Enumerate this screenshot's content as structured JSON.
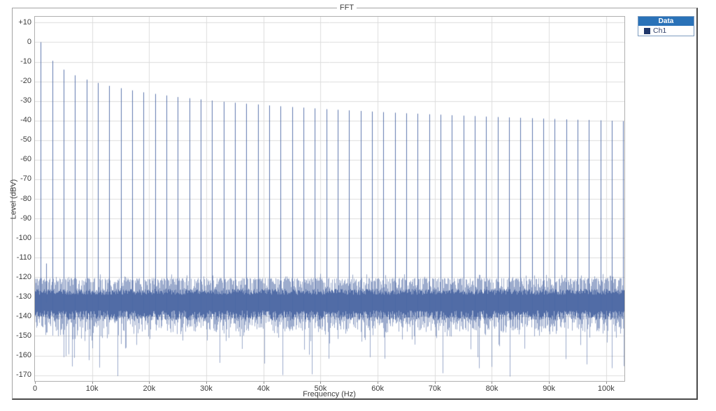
{
  "figure": {
    "title": "FFT"
  },
  "legend": {
    "header": "Data",
    "series_label": "Ch1",
    "header_bg": "#2a72b8",
    "swatch_color": "#20376b"
  },
  "colors": {
    "trace": "#4d68a4",
    "grid": "#dcdcdc",
    "plot_border": "#b0b0b0",
    "frame_border": "#a3a3a3",
    "text": "#3c3c3c"
  },
  "chart_data": {
    "type": "line",
    "title": "FFT",
    "xlabel": "Frequency (Hz)",
    "ylabel": "Level (dBV)",
    "xlim_khz": [
      0,
      103.2
    ],
    "ylim_db": [
      -173,
      13
    ],
    "grid": true,
    "legend_position": "top-right-outside",
    "x_ticks": [
      {
        "khz": 0,
        "label": "0"
      },
      {
        "khz": 10,
        "label": "10k"
      },
      {
        "khz": 20,
        "label": "20k"
      },
      {
        "khz": 30,
        "label": "30k"
      },
      {
        "khz": 40,
        "label": "40k"
      },
      {
        "khz": 50,
        "label": "50k"
      },
      {
        "khz": 60,
        "label": "60k"
      },
      {
        "khz": 70,
        "label": "70k"
      },
      {
        "khz": 80,
        "label": "80k"
      },
      {
        "khz": 90,
        "label": "90k"
      },
      {
        "khz": 100,
        "label": "100k"
      }
    ],
    "y_ticks": [
      {
        "db": 10,
        "label": "+10"
      },
      {
        "db": 0,
        "label": "0"
      },
      {
        "db": -10,
        "label": "-10"
      },
      {
        "db": -20,
        "label": "-20"
      },
      {
        "db": -30,
        "label": "-30"
      },
      {
        "db": -40,
        "label": "-40"
      },
      {
        "db": -50,
        "label": "-50"
      },
      {
        "db": -60,
        "label": "-60"
      },
      {
        "db": -70,
        "label": "-70"
      },
      {
        "db": -80,
        "label": "-80"
      },
      {
        "db": -90,
        "label": "-90"
      },
      {
        "db": -100,
        "label": "-100"
      },
      {
        "db": -110,
        "label": "-110"
      },
      {
        "db": -120,
        "label": "-120"
      },
      {
        "db": -130,
        "label": "-130"
      },
      {
        "db": -140,
        "label": "-140"
      },
      {
        "db": -150,
        "label": "-150"
      },
      {
        "db": -160,
        "label": "-160"
      },
      {
        "db": -170,
        "label": "-170"
      }
    ],
    "series": [
      {
        "name": "Ch1",
        "description": "Spectrum of a 1 kHz square wave: odd harmonics spaced 2 kHz apart decaying as 20*log10(1/n), above a random noise floor",
        "harmonics_khz_db": [
          [
            1,
            0
          ],
          [
            3,
            -9.5
          ],
          [
            5,
            -14
          ],
          [
            7,
            -16.9
          ],
          [
            9,
            -19.1
          ],
          [
            11,
            -20.8
          ],
          [
            13,
            -22.3
          ],
          [
            15,
            -23.5
          ],
          [
            17,
            -24.6
          ],
          [
            19,
            -25.6
          ],
          [
            21,
            -26.4
          ],
          [
            23,
            -27.2
          ],
          [
            25,
            -28
          ],
          [
            27,
            -28.6
          ],
          [
            29,
            -29.2
          ],
          [
            31,
            -29.8
          ],
          [
            33,
            -30.4
          ],
          [
            35,
            -30.9
          ],
          [
            37,
            -31.4
          ],
          [
            39,
            -31.8
          ],
          [
            41,
            -32.3
          ],
          [
            43,
            -32.7
          ],
          [
            45,
            -33.1
          ],
          [
            47,
            -33.4
          ],
          [
            49,
            -33.8
          ],
          [
            51,
            -34.2
          ],
          [
            53,
            -34.5
          ],
          [
            55,
            -34.8
          ],
          [
            57,
            -35.1
          ],
          [
            59,
            -35.4
          ],
          [
            61,
            -35.7
          ],
          [
            63,
            -36
          ],
          [
            65,
            -36.3
          ],
          [
            67,
            -36.5
          ],
          [
            69,
            -36.8
          ],
          [
            71,
            -37
          ],
          [
            73,
            -37.3
          ],
          [
            75,
            -37.5
          ],
          [
            77,
            -37.7
          ],
          [
            79,
            -38
          ],
          [
            81,
            -38.2
          ],
          [
            83,
            -38.4
          ],
          [
            85,
            -38.6
          ],
          [
            87,
            -38.8
          ],
          [
            89,
            -39
          ],
          [
            91,
            -39.2
          ],
          [
            93,
            -39.4
          ],
          [
            95,
            -39.6
          ],
          [
            97,
            -39.7
          ],
          [
            99,
            -39.9
          ],
          [
            101,
            -40.1
          ],
          [
            103,
            -40.3
          ]
        ],
        "even_harmonic_spur": {
          "khz": 2,
          "db": -113
        },
        "noise_floor": {
          "mean_db": -133,
          "typical_band_db": [
            -150,
            -121
          ],
          "deep_nulls_to_db": -171
        }
      }
    ]
  }
}
